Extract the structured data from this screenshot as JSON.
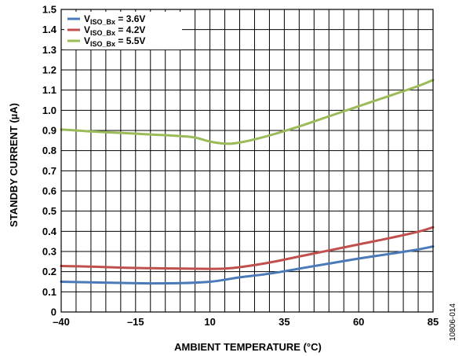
{
  "chart_data": {
    "type": "line",
    "xlabel": "AMBIENT TEMPERATURE (°C)",
    "ylabel": "STANDBY CURRENT (µA)",
    "xlim": [
      -40,
      85
    ],
    "ylim": [
      0,
      1.5
    ],
    "x_ticks": [
      -40,
      -15,
      10,
      35,
      60,
      85
    ],
    "x_tick_labels": [
      "–40",
      "–15",
      "10",
      "35",
      "60",
      "85"
    ],
    "y_ticks": [
      0,
      0.1,
      0.2,
      0.3,
      0.4,
      0.5,
      0.6,
      0.7,
      0.8,
      0.9,
      1.0,
      1.1,
      1.2,
      1.3,
      1.4,
      1.5
    ],
    "y_tick_labels": [
      "0",
      "0.1",
      "0.2",
      "0.3",
      "0.4",
      "0.5",
      "0.6",
      "0.7",
      "0.8",
      "0.9",
      "1.0",
      "1.1",
      "1.2",
      "1.3",
      "1.4",
      "1.5"
    ],
    "grid": true,
    "grid_minor_step_x": 5,
    "grid_minor_step_y": 0.1,
    "legend_position": "top-left",
    "series": [
      {
        "name": "V_ISO_Bx = 3.6V",
        "legend": {
          "prefix": "V",
          "sub": "ISO_Bx",
          "suffix": " = 3.6V"
        },
        "color": "#4a7ab8",
        "x": [
          -40,
          -30,
          -20,
          -10,
          0,
          10,
          15,
          20,
          30,
          40,
          50,
          60,
          70,
          80,
          85
        ],
        "y": [
          0.15,
          0.147,
          0.144,
          0.142,
          0.143,
          0.15,
          0.16,
          0.172,
          0.19,
          0.215,
          0.24,
          0.265,
          0.287,
          0.31,
          0.325
        ]
      },
      {
        "name": "V_ISO_Bx = 4.2V",
        "legend": {
          "prefix": "V",
          "sub": "ISO_Bx",
          "suffix": " = 4.2V"
        },
        "color": "#c0504d",
        "x": [
          -40,
          -30,
          -20,
          -10,
          0,
          10,
          15,
          20,
          30,
          40,
          50,
          60,
          70,
          80,
          85
        ],
        "y": [
          0.228,
          0.225,
          0.22,
          0.217,
          0.215,
          0.214,
          0.215,
          0.222,
          0.245,
          0.275,
          0.305,
          0.335,
          0.365,
          0.398,
          0.42
        ]
      },
      {
        "name": "V_ISO_Bx = 5.5V",
        "legend": {
          "prefix": "V",
          "sub": "ISO_Bx",
          "suffix": " = 5.5V"
        },
        "color": "#9bbb59",
        "x": [
          -40,
          -30,
          -20,
          -10,
          0,
          5,
          10,
          15,
          20,
          30,
          40,
          50,
          60,
          70,
          80,
          85
        ],
        "y": [
          0.905,
          0.895,
          0.888,
          0.88,
          0.872,
          0.865,
          0.845,
          0.835,
          0.84,
          0.875,
          0.92,
          0.97,
          1.02,
          1.07,
          1.12,
          1.15
        ]
      }
    ]
  },
  "figure_id": "10806-014"
}
